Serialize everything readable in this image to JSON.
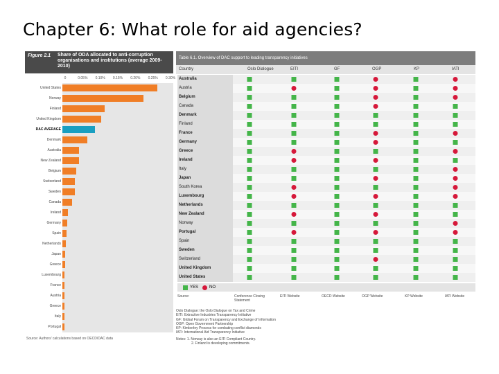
{
  "slide": {
    "title": "Chapter 6: What role for aid agencies?"
  },
  "figure_left": {
    "number": "Figure 2.1",
    "title": "Share of ODA allocated to anti-corruption organisations and institutions (average 2009-2010)",
    "source": "Source: Authors' calculations based on OECD/DAC data",
    "chart_data": {
      "type": "bar",
      "orientation": "horizontal",
      "x_ticks": [
        "0",
        "0.05%",
        "0.10%",
        "0.15%",
        "0.20%",
        "0.25%",
        "0.30%"
      ],
      "xlim": [
        0,
        0.3
      ],
      "categories": [
        "United States",
        "Norway",
        "Finland",
        "United Kingdom",
        "DAC AVERAGE",
        "Denmark",
        "Australia",
        "New Zealand",
        "Belgium",
        "Switzerland",
        "Sweden",
        "Canada",
        "Ireland",
        "Germany",
        "Spain",
        "Netherlands",
        "Japan",
        "Greece",
        "Luxembourg",
        "France",
        "Austria",
        "Greece",
        "Italy",
        "Portugal"
      ],
      "values": [
        0.27,
        0.23,
        0.12,
        0.11,
        0.093,
        0.071,
        0.048,
        0.048,
        0.04,
        0.035,
        0.035,
        0.027,
        0.015,
        0.014,
        0.012,
        0.01,
        0.008,
        0.007,
        0.004,
        0.003,
        0.002,
        0.001,
        0.001,
        0.0
      ],
      "highlight": "DAC AVERAGE",
      "colors": {
        "bars": "#f07e26",
        "highlight": "#1a9fc1"
      }
    }
  },
  "table": {
    "title": "Table 6.1. Overview of DAC support to leading transparency initiatives",
    "columns": [
      "Country",
      "Oslo Dialogue",
      "EITI",
      "GF",
      "OGP",
      "KP",
      "IATI"
    ],
    "rows": [
      {
        "country": "Australia",
        "bold": true,
        "v": [
          "Y",
          "Y",
          "Y",
          "N",
          "Y",
          "N"
        ]
      },
      {
        "country": "Austria",
        "bold": false,
        "v": [
          "Y",
          "N",
          "Y",
          "N",
          "Y",
          "N"
        ]
      },
      {
        "country": "Belgium",
        "bold": true,
        "v": [
          "Y",
          "Y",
          "Y",
          "N",
          "Y",
          "N"
        ]
      },
      {
        "country": "Canada",
        "bold": false,
        "v": [
          "Y",
          "Y",
          "Y",
          "N",
          "Y",
          "Y"
        ]
      },
      {
        "country": "Denmark",
        "bold": true,
        "v": [
          "Y",
          "Y",
          "Y",
          "Y",
          "Y",
          "Y"
        ]
      },
      {
        "country": "Finland",
        "bold": false,
        "v": [
          "Y",
          "Y",
          "Y",
          "Y",
          "Y",
          "Y"
        ]
      },
      {
        "country": "France",
        "bold": true,
        "v": [
          "Y",
          "Y",
          "Y",
          "N",
          "Y",
          "N"
        ]
      },
      {
        "country": "Germany",
        "bold": true,
        "v": [
          "Y",
          "Y",
          "Y",
          "N",
          "Y",
          "Y"
        ]
      },
      {
        "country": "Greece",
        "bold": true,
        "v": [
          "Y",
          "N",
          "Y",
          "Y",
          "Y",
          "N"
        ]
      },
      {
        "country": "Ireland",
        "bold": true,
        "v": [
          "Y",
          "N",
          "Y",
          "N",
          "Y",
          "Y"
        ]
      },
      {
        "country": "Italy",
        "bold": false,
        "v": [
          "Y",
          "Y",
          "Y",
          "Y",
          "Y",
          "N"
        ]
      },
      {
        "country": "Japan",
        "bold": true,
        "v": [
          "Y",
          "Y",
          "Y",
          "N",
          "Y",
          "N"
        ]
      },
      {
        "country": "South Korea",
        "bold": false,
        "v": [
          "Y",
          "N",
          "Y",
          "Y",
          "Y",
          "N"
        ]
      },
      {
        "country": "Luxembourg",
        "bold": true,
        "v": [
          "Y",
          "N",
          "Y",
          "N",
          "Y",
          "N"
        ]
      },
      {
        "country": "Netherlands",
        "bold": true,
        "v": [
          "Y",
          "Y",
          "Y",
          "Y",
          "Y",
          "Y"
        ]
      },
      {
        "country": "New Zealand",
        "bold": true,
        "v": [
          "Y",
          "N",
          "Y",
          "N",
          "Y",
          "Y"
        ]
      },
      {
        "country": "Norway",
        "bold": false,
        "v": [
          "Y",
          "Y",
          "Y",
          "Y",
          "Y",
          "N"
        ]
      },
      {
        "country": "Portugal",
        "bold": true,
        "v": [
          "Y",
          "N",
          "Y",
          "N",
          "Y",
          "N"
        ]
      },
      {
        "country": "Spain",
        "bold": false,
        "v": [
          "Y",
          "Y",
          "Y",
          "Y",
          "Y",
          "Y"
        ]
      },
      {
        "country": "Sweden",
        "bold": true,
        "v": [
          "Y",
          "Y",
          "Y",
          "Y",
          "Y",
          "Y"
        ]
      },
      {
        "country": "Switzerland",
        "bold": false,
        "v": [
          "Y",
          "Y",
          "Y",
          "N",
          "Y",
          "Y"
        ]
      },
      {
        "country": "United Kingdom",
        "bold": true,
        "v": [
          "Y",
          "Y",
          "Y",
          "Y",
          "Y",
          "Y"
        ]
      },
      {
        "country": "United States",
        "bold": true,
        "v": [
          "Y",
          "Y",
          "Y",
          "Y",
          "Y",
          "Y"
        ]
      }
    ],
    "legend": {
      "yes": "YES",
      "no": "NO"
    },
    "sources": {
      "label": "Source:",
      "oslo": "Conference Closing Statement",
      "eiti": "EITI Website",
      "gf": "OECD Website",
      "ogp": "OGP Website",
      "kp": "KP Website",
      "iati": "IATI Website"
    },
    "notes": [
      "Oslo Dialogue: the Oslo Dialogue on Tax and Crime",
      "EITI: Extractive Industries Transparency Initiative",
      "GF: Global Forum on Transparency and Exchange of Information",
      "OGP: Open Government Partnership",
      "KP: Kimberley Process for combating conflict diamonds",
      "IATI: International Aid Transparency Initiative",
      "Notes: 1. Norway is also an EITI Compliant Country.",
      "2. Finland is developing commitments."
    ],
    "colors": {
      "yes": "#44b549",
      "no": "#d6183a"
    }
  }
}
